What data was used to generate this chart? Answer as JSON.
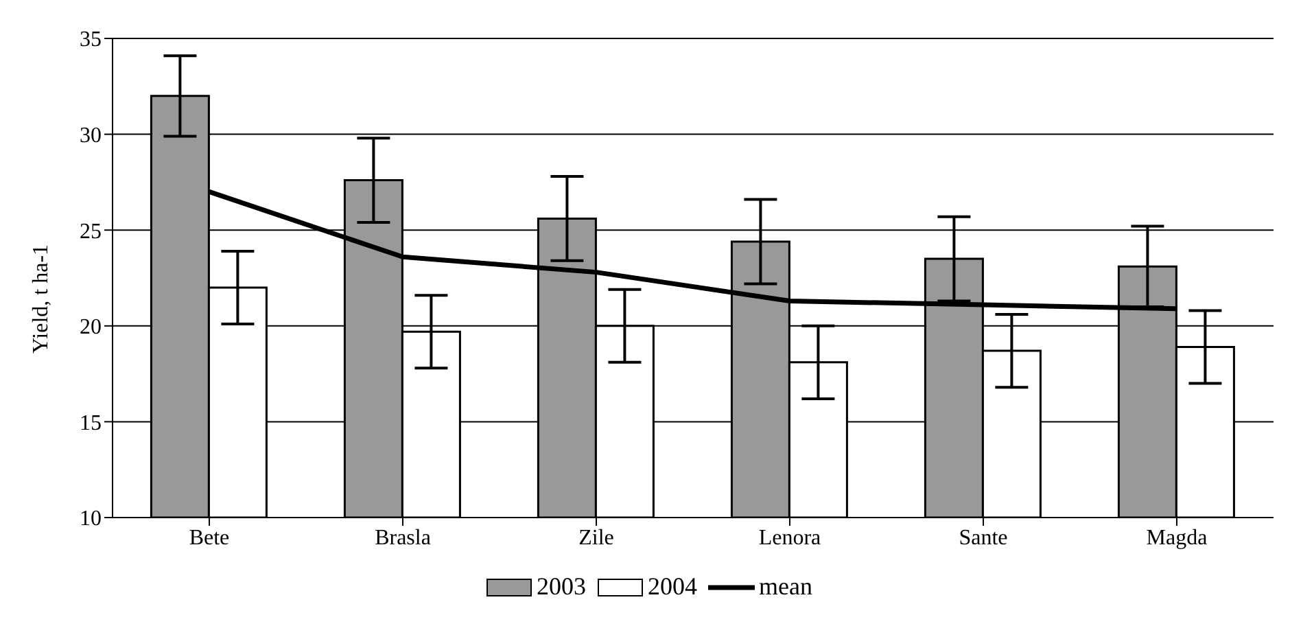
{
  "chart_data": {
    "type": "bar",
    "ylabel": "Yield, t ha-1",
    "categories": [
      "Bete",
      "Brasla",
      "Zile",
      "Lenora",
      "Sante",
      "Magda"
    ],
    "series": [
      {
        "name": "2003",
        "color": "#999999",
        "values": [
          32.0,
          27.6,
          25.6,
          24.4,
          23.5,
          23.1
        ],
        "errors": [
          2.1,
          2.2,
          2.2,
          2.2,
          2.2,
          2.1
        ]
      },
      {
        "name": "2004",
        "color": "#ffffff",
        "values": [
          22.0,
          19.7,
          20.0,
          18.1,
          18.7,
          18.9
        ],
        "errors": [
          1.9,
          1.9,
          1.9,
          1.9,
          1.9,
          1.9
        ]
      },
      {
        "name": "mean",
        "type": "line",
        "color": "#000000",
        "values": [
          27.0,
          23.6,
          22.8,
          21.3,
          21.1,
          20.9
        ]
      }
    ],
    "ylim": [
      10,
      35
    ],
    "yticks": [
      10,
      15,
      20,
      25,
      30,
      35
    ],
    "grid": "y",
    "legend": "bottom",
    "marker": "none",
    "line_style": "solid"
  }
}
